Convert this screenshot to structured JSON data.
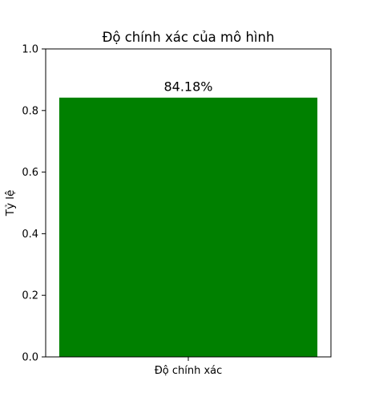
{
  "chart_data": {
    "type": "bar",
    "title": "Độ chính xác của mô hình",
    "xlabel": "",
    "ylabel": "Tỷ lệ",
    "categories": [
      "Độ chính xác"
    ],
    "values": [
      0.8418
    ],
    "data_labels": [
      "84.18%"
    ],
    "ylim": [
      0,
      1.0
    ],
    "yticks": [
      "0.0",
      "0.2",
      "0.4",
      "0.6",
      "0.8",
      "1.0"
    ],
    "bar_color": "#008000",
    "grid": false
  }
}
